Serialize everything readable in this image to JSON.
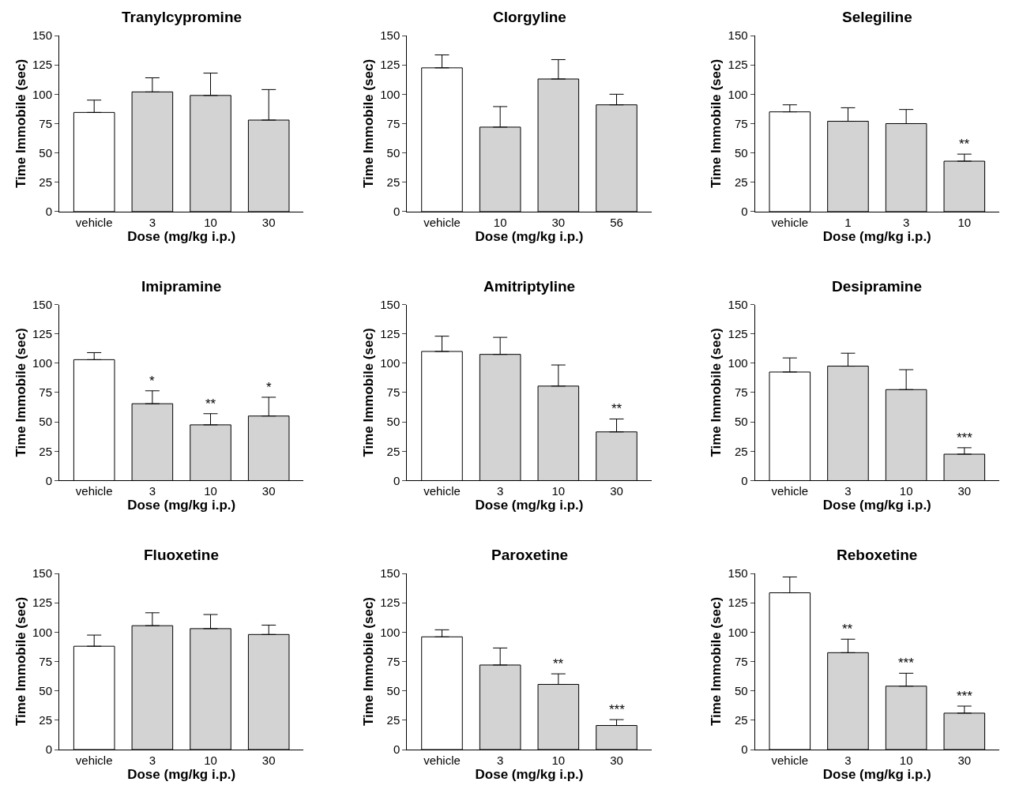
{
  "chart_data": [
    {
      "type": "bar",
      "title": "Tranylcypromine",
      "xlabel": "Dose (mg/kg i.p.)",
      "ylabel": "Time Immobile (sec)",
      "categories": [
        "vehicle",
        "3",
        "10",
        "30"
      ],
      "values": [
        84.5,
        102,
        99,
        78
      ],
      "errors": [
        [
          84.5,
          95
        ],
        [
          102,
          114
        ],
        [
          99,
          118
        ],
        [
          78,
          104
        ]
      ],
      "colors": [
        "#ffffff",
        "#d3d3d3",
        "#d3d3d3",
        "#d3d3d3"
      ],
      "ylim": [
        0,
        150
      ],
      "yticks": [
        0,
        25,
        50,
        75,
        100,
        125,
        150
      ]
    },
    {
      "type": "bar",
      "title": "Clorgyline",
      "xlabel": "Dose (mg/kg i.p.)",
      "ylabel": "Time Immobile (sec)",
      "categories": [
        "vehicle",
        "10",
        "30",
        "56"
      ],
      "values": [
        122.5,
        72,
        113,
        91
      ],
      "errors": [
        [
          122.5,
          133.5
        ],
        [
          72,
          89.5
        ],
        [
          113,
          129.5
        ],
        [
          91,
          100
        ]
      ],
      "colors": [
        "#ffffff",
        "#d3d3d3",
        "#d3d3d3",
        "#d3d3d3"
      ],
      "ylim": [
        0,
        150
      ],
      "yticks": [
        0,
        25,
        50,
        75,
        100,
        125,
        150
      ]
    },
    {
      "type": "bar",
      "title": "Selegiline",
      "xlabel": "Dose (mg/kg i.p.)",
      "ylabel": "Time Immobile (sec)",
      "categories": [
        "vehicle",
        "1",
        "3",
        "10"
      ],
      "values": [
        85,
        77,
        75,
        43
      ],
      "errors": [
        [
          85,
          91
        ],
        [
          77,
          88.5
        ],
        [
          75,
          87
        ],
        [
          43,
          49
        ]
      ],
      "colors": [
        "#ffffff",
        "#d3d3d3",
        "#d3d3d3",
        "#d3d3d3"
      ],
      "ylim": [
        0,
        150
      ],
      "yticks": [
        0,
        25,
        50,
        75,
        100,
        125,
        150
      ],
      "annotations": [
        {
          "text": "**",
          "x": "10",
          "y": 49
        }
      ]
    },
    {
      "type": "bar",
      "title": "Imipramine",
      "xlabel": "Dose (mg/kg i.p.)",
      "ylabel": "Time Immobile (sec)",
      "categories": [
        "vehicle",
        "3",
        "10",
        "30"
      ],
      "values": [
        103,
        65.5,
        47.5,
        55
      ],
      "errors": [
        [
          103,
          109
        ],
        [
          65.5,
          76.5
        ],
        [
          47.5,
          57
        ],
        [
          55,
          71
        ]
      ],
      "colors": [
        "#ffffff",
        "#d3d3d3",
        "#d3d3d3",
        "#d3d3d3"
      ],
      "ylim": [
        0,
        150
      ],
      "yticks": [
        0,
        25,
        50,
        75,
        100,
        125,
        150
      ],
      "annotations": [
        {
          "text": "*",
          "x": "3",
          "y": 76.5
        },
        {
          "text": "**",
          "x": "10",
          "y": 57
        },
        {
          "text": "*",
          "x": "30",
          "y": 71
        }
      ]
    },
    {
      "type": "bar",
      "title": "Amitriptyline",
      "xlabel": "Dose (mg/kg i.p.)",
      "ylabel": "Time Immobile (sec)",
      "categories": [
        "vehicle",
        "3",
        "10",
        "30"
      ],
      "values": [
        110,
        107.5,
        80.5,
        41.5
      ],
      "errors": [
        [
          110,
          123
        ],
        [
          107.5,
          122
        ],
        [
          80.5,
          98.5
        ],
        [
          41.5,
          52.5
        ]
      ],
      "colors": [
        "#ffffff",
        "#d3d3d3",
        "#d3d3d3",
        "#d3d3d3"
      ],
      "ylim": [
        0,
        150
      ],
      "yticks": [
        0,
        25,
        50,
        75,
        100,
        125,
        150
      ],
      "annotations": [
        {
          "text": "**",
          "x": "30",
          "y": 52.5
        }
      ]
    },
    {
      "type": "bar",
      "title": "Desipramine",
      "xlabel": "Dose (mg/kg i.p.)",
      "ylabel": "Time Immobile (sec)",
      "categories": [
        "vehicle",
        "3",
        "10",
        "30"
      ],
      "values": [
        92.5,
        97.5,
        77.5,
        22.5
      ],
      "errors": [
        [
          92.5,
          104.5
        ],
        [
          97.5,
          108.5
        ],
        [
          77.5,
          94.5
        ],
        [
          22.5,
          28
        ]
      ],
      "colors": [
        "#ffffff",
        "#d3d3d3",
        "#d3d3d3",
        "#d3d3d3"
      ],
      "ylim": [
        0,
        150
      ],
      "yticks": [
        0,
        25,
        50,
        75,
        100,
        125,
        150
      ],
      "annotations": [
        {
          "text": "***",
          "x": "30",
          "y": 28
        }
      ]
    },
    {
      "type": "bar",
      "title": "Fluoxetine",
      "xlabel": "Dose (mg/kg i.p.)",
      "ylabel": "Time Immobile (sec)",
      "categories": [
        "vehicle",
        "3",
        "10",
        "30"
      ],
      "values": [
        88,
        105.5,
        103,
        98
      ],
      "errors": [
        [
          88,
          97.5
        ],
        [
          105.5,
          116.5
        ],
        [
          103,
          115
        ],
        [
          98,
          106
        ]
      ],
      "colors": [
        "#ffffff",
        "#d3d3d3",
        "#d3d3d3",
        "#d3d3d3"
      ],
      "ylim": [
        0,
        150
      ],
      "yticks": [
        0,
        25,
        50,
        75,
        100,
        125,
        150
      ]
    },
    {
      "type": "bar",
      "title": "Paroxetine",
      "xlabel": "Dose (mg/kg i.p.)",
      "ylabel": "Time Immobile (sec)",
      "categories": [
        "vehicle",
        "3",
        "10",
        "30"
      ],
      "values": [
        96,
        72,
        55.5,
        20.5
      ],
      "errors": [
        [
          96,
          102
        ],
        [
          72,
          86.5
        ],
        [
          55.5,
          64.5
        ],
        [
          20.5,
          25.5
        ]
      ],
      "colors": [
        "#ffffff",
        "#d3d3d3",
        "#d3d3d3",
        "#d3d3d3"
      ],
      "ylim": [
        0,
        150
      ],
      "yticks": [
        0,
        25,
        50,
        75,
        100,
        125,
        150
      ],
      "annotations": [
        {
          "text": "**",
          "x": "10",
          "y": 64.5
        },
        {
          "text": "***",
          "x": "30",
          "y": 25.5
        }
      ]
    },
    {
      "type": "bar",
      "title": "Reboxetine",
      "xlabel": "Dose (mg/kg i.p.)",
      "ylabel": "Time Immobile (sec)",
      "categories": [
        "vehicle",
        "3",
        "10",
        "30"
      ],
      "values": [
        133.5,
        82.5,
        54,
        31
      ],
      "errors": [
        [
          133.5,
          147
        ],
        [
          82.5,
          94
        ],
        [
          54,
          65
        ],
        [
          31,
          37
        ]
      ],
      "colors": [
        "#ffffff",
        "#d3d3d3",
        "#d3d3d3",
        "#d3d3d3"
      ],
      "ylim": [
        0,
        150
      ],
      "yticks": [
        0,
        25,
        50,
        75,
        100,
        125,
        150
      ],
      "annotations": [
        {
          "text": "**",
          "x": "3",
          "y": 94
        },
        {
          "text": "***",
          "x": "10",
          "y": 65
        },
        {
          "text": "***",
          "x": "30",
          "y": 37
        }
      ]
    }
  ]
}
